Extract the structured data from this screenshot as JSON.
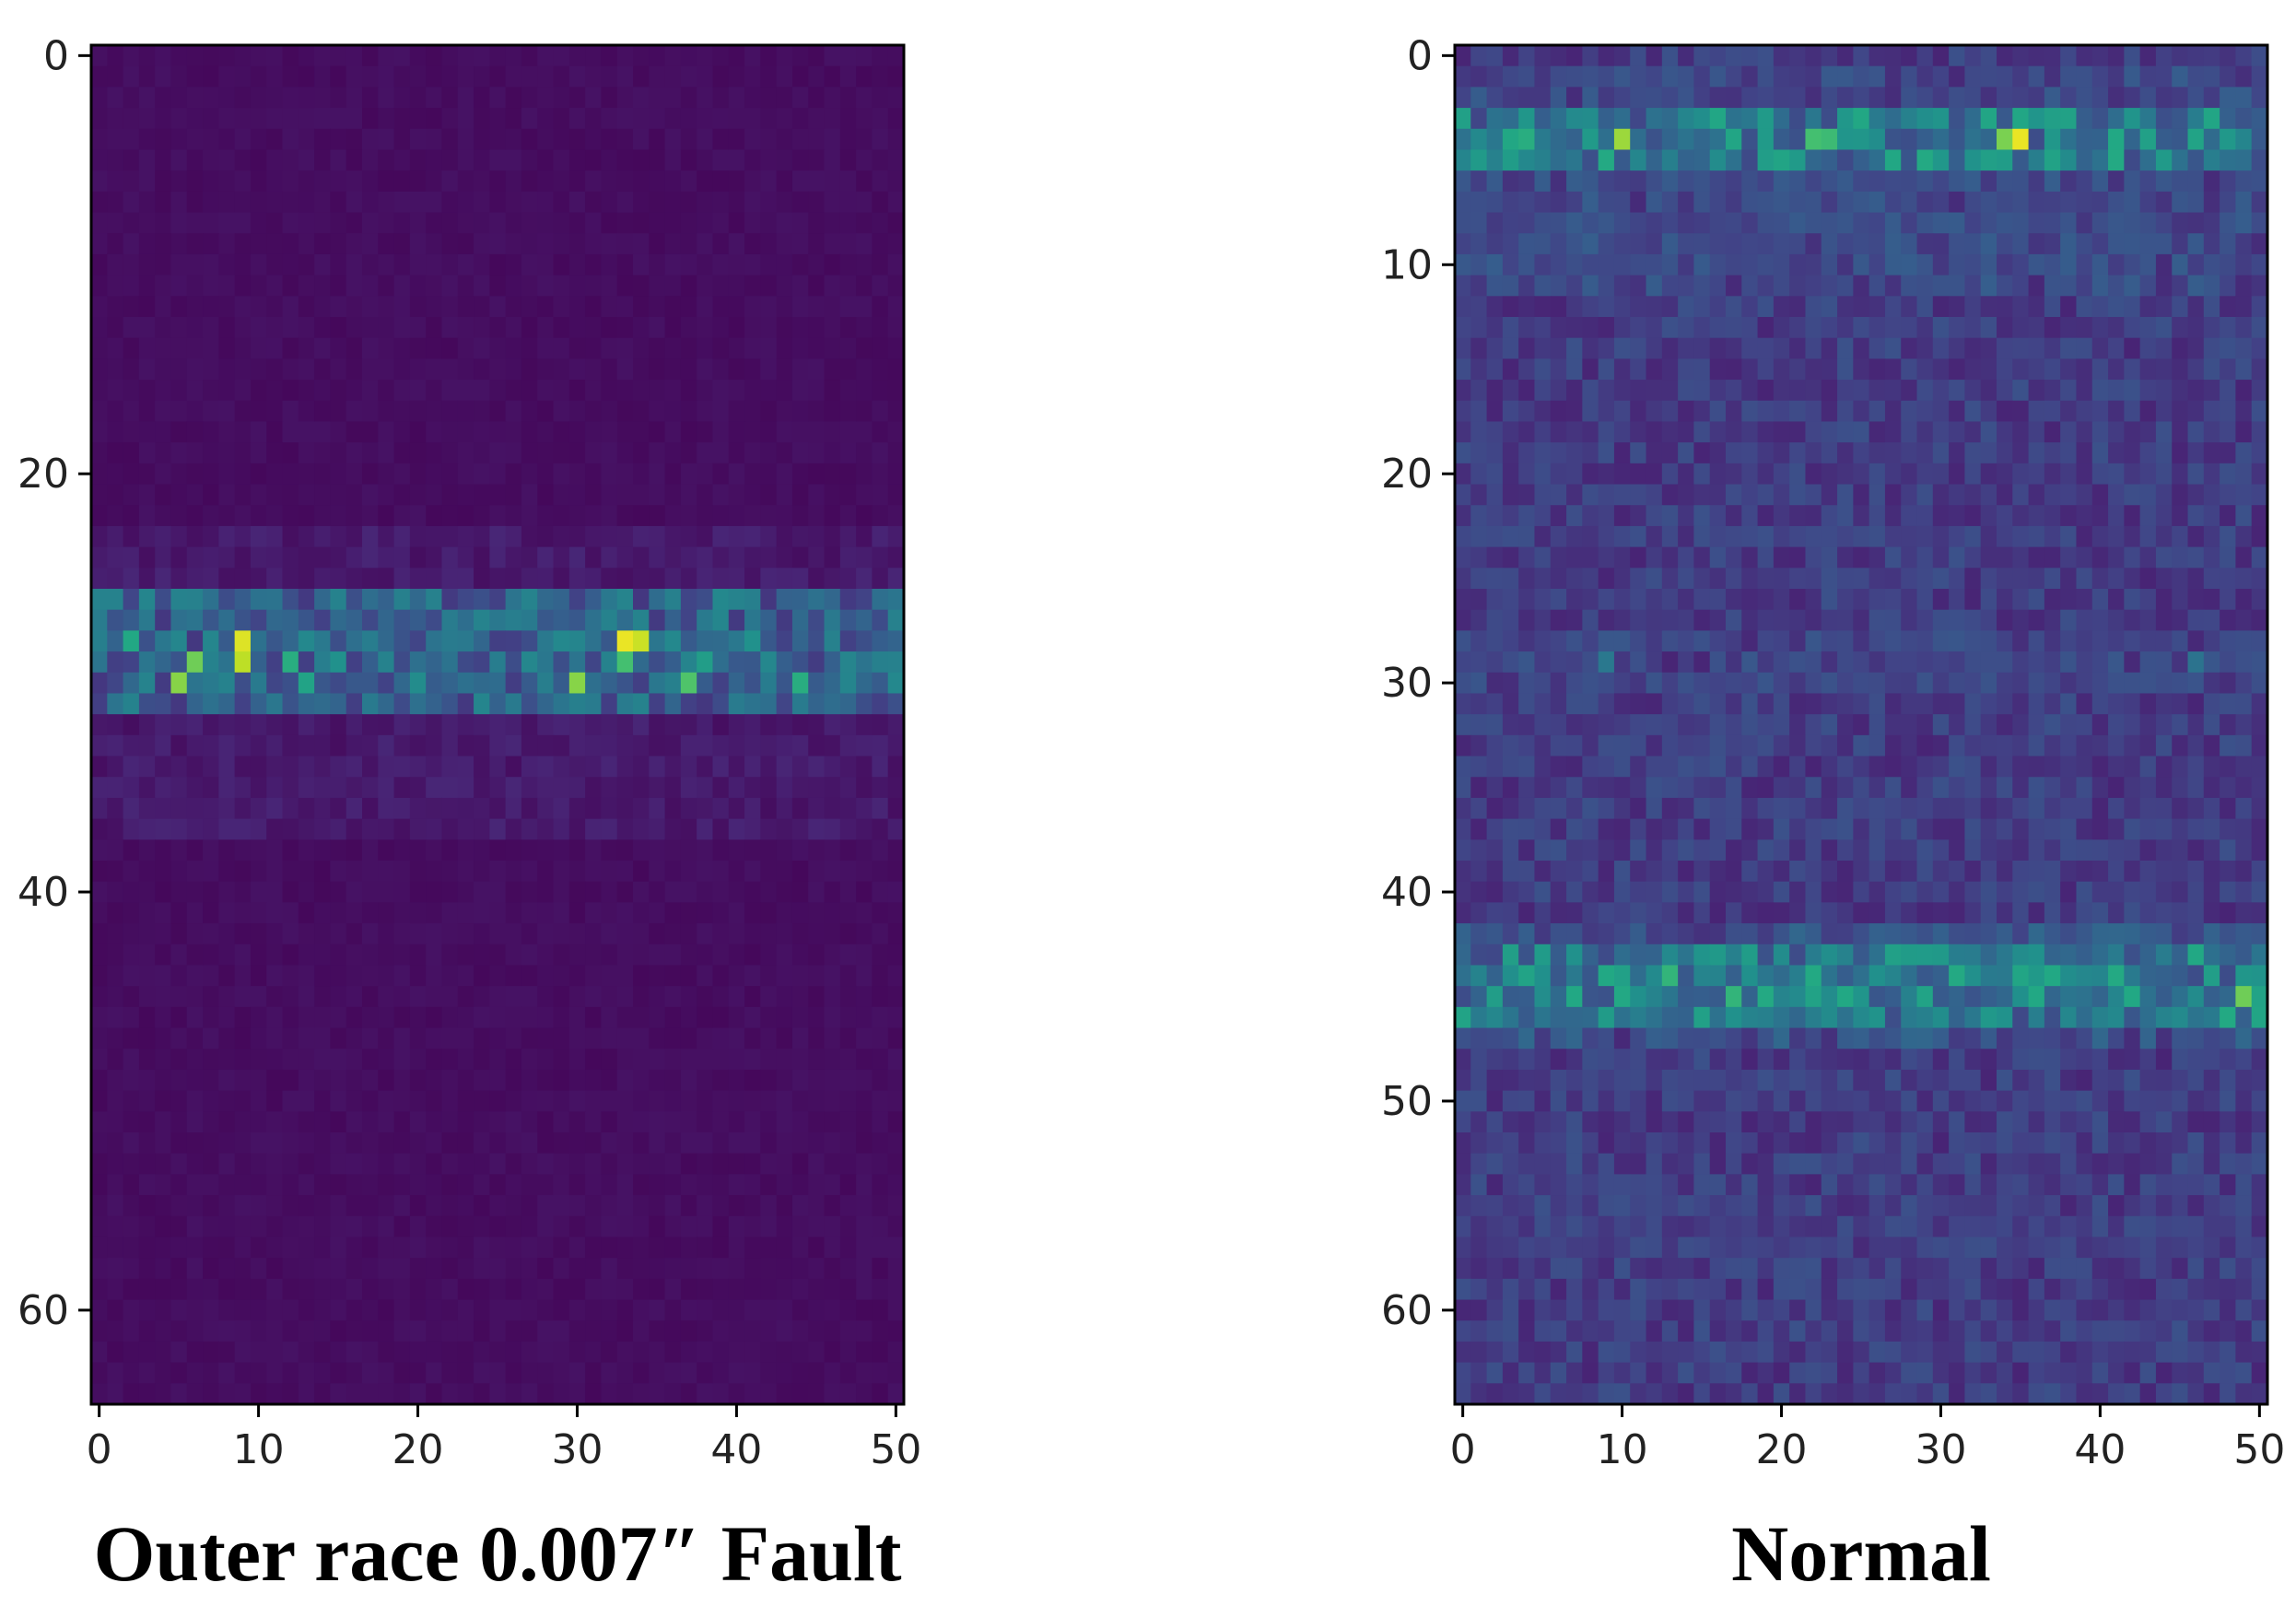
{
  "chart_data": [
    {
      "type": "heatmap",
      "title": "Outer race 0.007″ Fault",
      "xlabel": "",
      "ylabel": "",
      "cols": 51,
      "rows": 65,
      "xlim": [
        0,
        50
      ],
      "ylim": [
        64,
        0
      ],
      "xticks": [
        0,
        10,
        20,
        30,
        40,
        50
      ],
      "yticks": [
        0,
        20,
        40,
        60
      ],
      "colormap": "viridis",
      "value_range": [
        0,
        1
      ],
      "background_level": 0.02,
      "bands": [
        {
          "row_start": 26,
          "row_end": 31,
          "level": 0.35
        },
        {
          "row_start": 23,
          "row_end": 37,
          "level": 0.08
        }
      ],
      "hotspots": [
        {
          "x": 6,
          "y": 29,
          "v": 0.78
        },
        {
          "x": 5,
          "y": 30,
          "v": 0.82
        },
        {
          "x": 9,
          "y": 28,
          "v": 0.95
        },
        {
          "x": 9,
          "y": 29,
          "v": 0.9
        },
        {
          "x": 2,
          "y": 28,
          "v": 0.6
        },
        {
          "x": 12,
          "y": 29,
          "v": 0.62
        },
        {
          "x": 13,
          "y": 30,
          "v": 0.58
        },
        {
          "x": 15,
          "y": 29,
          "v": 0.5
        },
        {
          "x": 20,
          "y": 30,
          "v": 0.48
        },
        {
          "x": 30,
          "y": 30,
          "v": 0.82
        },
        {
          "x": 33,
          "y": 28,
          "v": 0.97
        },
        {
          "x": 34,
          "y": 28,
          "v": 0.92
        },
        {
          "x": 33,
          "y": 29,
          "v": 0.7
        },
        {
          "x": 37,
          "y": 30,
          "v": 0.72
        },
        {
          "x": 38,
          "y": 29,
          "v": 0.55
        },
        {
          "x": 44,
          "y": 30,
          "v": 0.62
        },
        {
          "x": 41,
          "y": 28,
          "v": 0.5
        },
        {
          "x": 47,
          "y": 29,
          "v": 0.45
        }
      ]
    },
    {
      "type": "heatmap",
      "title": "Normal",
      "xlabel": "",
      "ylabel": "",
      "cols": 51,
      "rows": 65,
      "xlim": [
        0,
        50
      ],
      "ylim": [
        64,
        0
      ],
      "xticks": [
        0,
        10,
        20,
        30,
        40,
        50
      ],
      "yticks": [
        0,
        10,
        20,
        30,
        40,
        50,
        60
      ],
      "colormap": "viridis",
      "value_range": [
        0,
        1
      ],
      "background_level": 0.1,
      "bands": [
        {
          "row_start": 3,
          "row_end": 5,
          "level": 0.45
        },
        {
          "row_start": 1,
          "row_end": 8,
          "level": 0.22
        },
        {
          "row_start": 9,
          "row_end": 11,
          "level": 0.22
        },
        {
          "row_start": 28,
          "row_end": 30,
          "level": 0.2
        },
        {
          "row_start": 43,
          "row_end": 46,
          "level": 0.45
        },
        {
          "row_start": 42,
          "row_end": 47,
          "level": 0.25
        },
        {
          "row_start": 55,
          "row_end": 57,
          "level": 0.16
        }
      ],
      "hotspots": [
        {
          "x": 10,
          "y": 4,
          "v": 0.85
        },
        {
          "x": 35,
          "y": 4,
          "v": 0.97
        },
        {
          "x": 34,
          "y": 4,
          "v": 0.8
        },
        {
          "x": 22,
          "y": 4,
          "v": 0.7
        },
        {
          "x": 23,
          "y": 4,
          "v": 0.68
        },
        {
          "x": 4,
          "y": 4,
          "v": 0.62
        },
        {
          "x": 41,
          "y": 4,
          "v": 0.6
        },
        {
          "x": 46,
          "y": 4,
          "v": 0.58
        },
        {
          "x": 13,
          "y": 44,
          "v": 0.65
        },
        {
          "x": 17,
          "y": 45,
          "v": 0.65
        },
        {
          "x": 49,
          "y": 45,
          "v": 0.78
        },
        {
          "x": 7,
          "y": 45,
          "v": 0.6
        },
        {
          "x": 24,
          "y": 45,
          "v": 0.6
        },
        {
          "x": 36,
          "y": 45,
          "v": 0.6
        },
        {
          "x": 42,
          "y": 45,
          "v": 0.6
        },
        {
          "x": 9,
          "y": 29,
          "v": 0.4
        },
        {
          "x": 46,
          "y": 29,
          "v": 0.38
        }
      ]
    }
  ]
}
